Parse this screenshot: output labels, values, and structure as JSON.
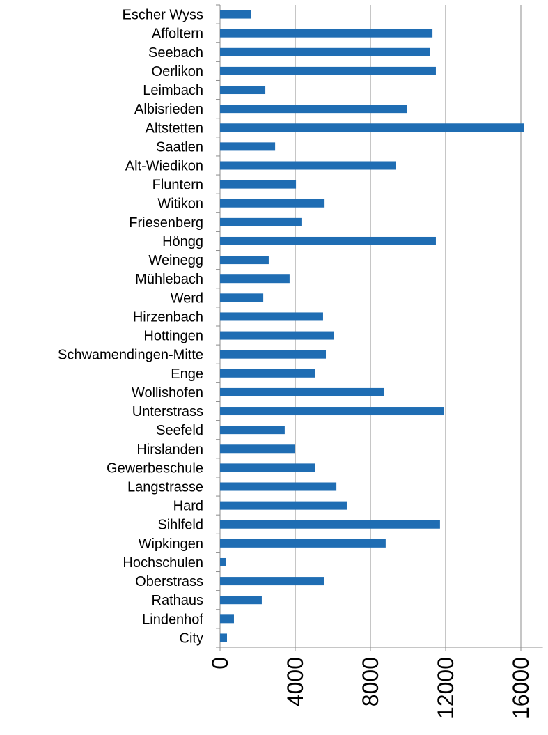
{
  "chart_data": {
    "type": "barh",
    "categories": [
      "Escher Wyss",
      "Affoltern",
      "Seebach",
      "Oerlikon",
      "Leimbach",
      "Albisrieden",
      "Altstetten",
      "Saatlen",
      "Alt-Wiedikon",
      "Fluntern",
      "Witikon",
      "Friesenberg",
      "Höngg",
      "Weinegg",
      "Mühlebach",
      "Werd",
      "Hirzenbach",
      "Hottingen",
      "Schwamendingen-Mitte",
      "Enge",
      "Wollishofen",
      "Unterstrass",
      "Seefeld",
      "Hirslanden",
      "Gewerbeschule",
      "Langstrasse",
      "Hard",
      "Sihlfeld",
      "Wipkingen",
      "Hochschulen",
      "Oberstrass",
      "Rathaus",
      "Lindenhof",
      "City"
    ],
    "values": [
      1630,
      11300,
      11150,
      11480,
      2410,
      9930,
      16150,
      2930,
      9370,
      4040,
      5560,
      4330,
      11480,
      2590,
      3700,
      2300,
      5480,
      6040,
      5630,
      5040,
      8740,
      11890,
      3440,
      4000,
      5070,
      6190,
      6740,
      11700,
      8810,
      300,
      5520,
      2220,
      740,
      370
    ],
    "color": "#1f6db3",
    "xlim": [
      0,
      16800
    ],
    "xticks": [
      0,
      4000,
      8000,
      12000,
      16000
    ],
    "grid": true
  }
}
